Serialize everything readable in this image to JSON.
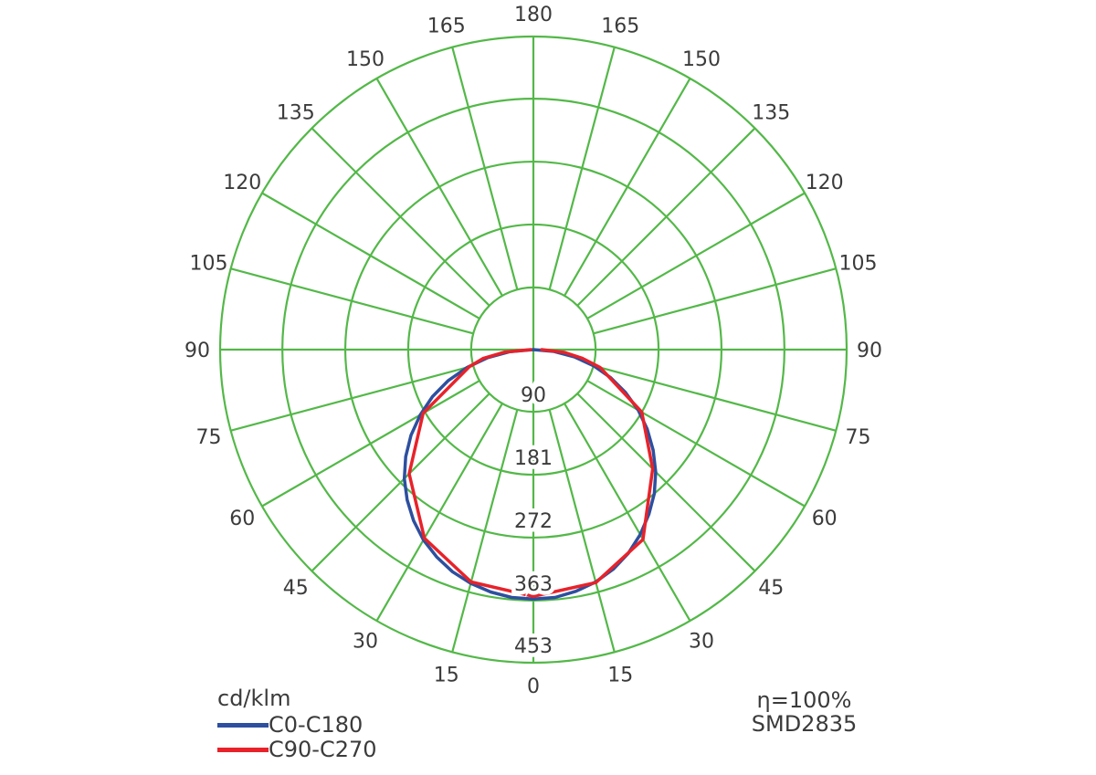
{
  "chart_data": {
    "type": "polar",
    "description": "Luminous intensity distribution curve (photometric polar diagram)",
    "angle_unit": "deg",
    "angle_zero_position": "bottom",
    "angle_ticks_deg": [
      0,
      15,
      30,
      45,
      60,
      75,
      90,
      105,
      120,
      135,
      150,
      165,
      180
    ],
    "radial_tick_values": [
      90,
      181,
      272,
      363,
      453
    ],
    "radial_tick_labels": [
      "90",
      "181",
      "272",
      "363",
      "453"
    ],
    "rmax": 453,
    "grid_color": "#53b848",
    "text_color": "#3b3b3b",
    "units_label": "cd/klm",
    "series": [
      {
        "name": "C0-C180",
        "color": "#2d4f9f",
        "start_deg": -90,
        "step_deg": 5,
        "values": [
          0,
          34,
          67,
          99,
          131,
          161,
          189,
          216,
          241,
          264,
          284,
          302,
          318,
          331,
          342,
          350,
          356,
          360,
          361,
          360,
          355,
          348,
          338,
          325,
          309,
          291,
          272,
          250,
          226,
          201,
          175,
          147,
          119,
          90,
          60,
          30,
          0
        ]
      },
      {
        "name": "C90-C270",
        "color": "#e8222a",
        "angles_deg": [
          -90,
          -85,
          -80,
          -75,
          -60,
          -45,
          -30,
          -15,
          0,
          15,
          30,
          45,
          60,
          75,
          80,
          85,
          90
        ],
        "values": [
          4,
          42,
          74,
          96,
          184,
          254,
          315,
          348,
          357,
          349,
          317,
          244,
          181,
          100,
          72,
          45,
          12
        ]
      }
    ]
  },
  "legend": {
    "units": "cd/klm",
    "items": [
      {
        "label": "C0-C180",
        "color": "#2d4f9f"
      },
      {
        "label": "C90-C270",
        "color": "#e8222a"
      }
    ]
  },
  "annotations": {
    "efficiency": "η=100%",
    "chip": "SMD2835"
  }
}
